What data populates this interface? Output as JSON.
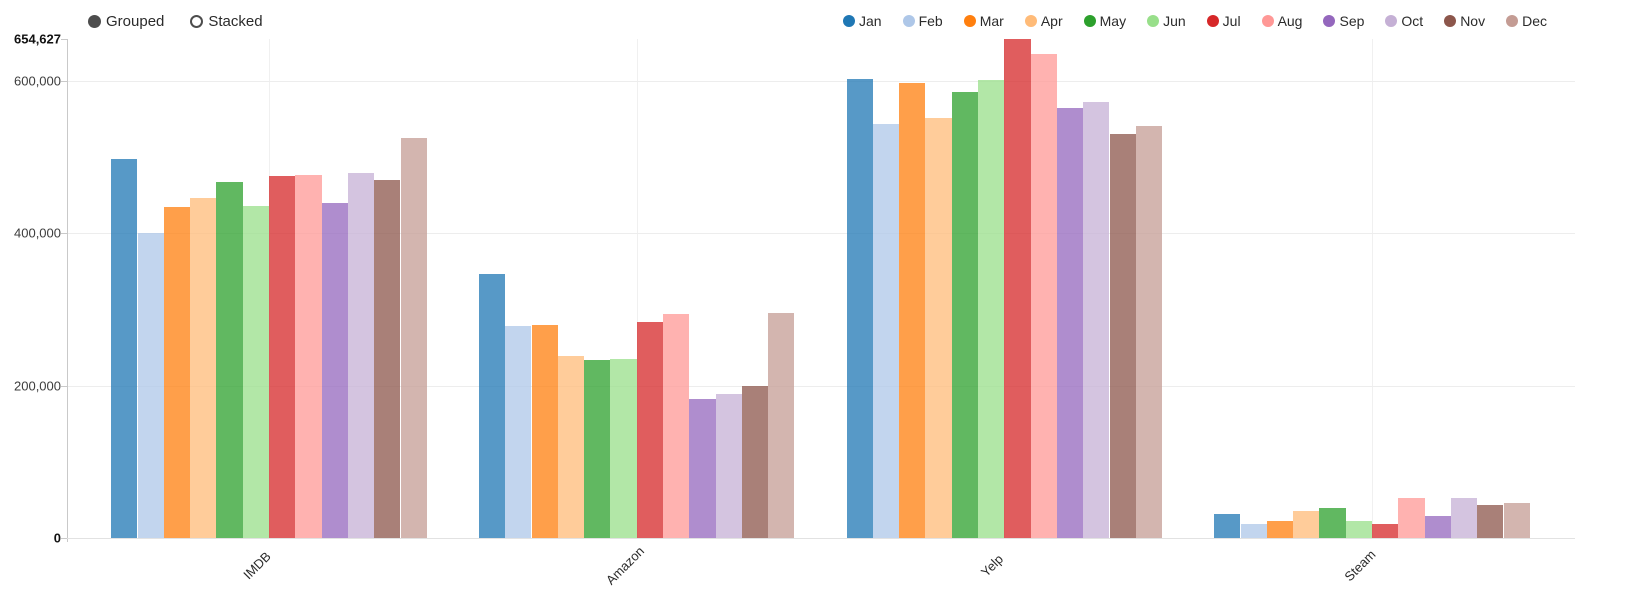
{
  "controls": {
    "grouped": "Grouped",
    "stacked": "Stacked",
    "selected": "Grouped"
  },
  "chart_data": {
    "type": "bar",
    "mode": "grouped",
    "categories": [
      "IMDB",
      "Amazon",
      "Yelp",
      "Steam"
    ],
    "series": [
      {
        "name": "Jan",
        "color": "#1f77b4",
        "values": [
          497000,
          346000,
          603000,
          31000
        ]
      },
      {
        "name": "Feb",
        "color": "#aec7e8",
        "values": [
          401000,
          278000,
          543000,
          18000
        ]
      },
      {
        "name": "Mar",
        "color": "#ff7f0e",
        "values": [
          435000,
          279000,
          598000,
          22000
        ]
      },
      {
        "name": "Apr",
        "color": "#ffbb78",
        "values": [
          446000,
          239000,
          551000,
          35000
        ]
      },
      {
        "name": "May",
        "color": "#2ca02c",
        "values": [
          468000,
          234000,
          586000,
          40000
        ]
      },
      {
        "name": "Jun",
        "color": "#98df8a",
        "values": [
          436000,
          235000,
          601000,
          22000
        ]
      },
      {
        "name": "Jul",
        "color": "#d62728",
        "values": [
          475000,
          283000,
          654627,
          19000
        ]
      },
      {
        "name": "Aug",
        "color": "#ff9896",
        "values": [
          476000,
          294000,
          636000,
          53000
        ]
      },
      {
        "name": "Sep",
        "color": "#9467bd",
        "values": [
          440000,
          182000,
          564000,
          29000
        ]
      },
      {
        "name": "Oct",
        "color": "#c5b0d5",
        "values": [
          479000,
          189000,
          572000,
          53000
        ]
      },
      {
        "name": "Nov",
        "color": "#8c564b",
        "values": [
          470000,
          200000,
          531000,
          43000
        ]
      },
      {
        "name": "Dec",
        "color": "#c49c94",
        "values": [
          525000,
          295000,
          541000,
          46000
        ]
      }
    ],
    "y_ticks": [
      {
        "value": 0,
        "label": "0",
        "bold": true
      },
      {
        "value": 200000,
        "label": "200,000",
        "bold": false
      },
      {
        "value": 400000,
        "label": "400,000",
        "bold": false
      },
      {
        "value": 600000,
        "label": "600,000",
        "bold": false
      },
      {
        "value": 654627,
        "label": "654,627",
        "bold": true
      }
    ],
    "ylim": [
      0,
      654627
    ],
    "xlabel": "",
    "ylabel": "",
    "title": "",
    "legend_position": "top-right",
    "grid": true
  }
}
